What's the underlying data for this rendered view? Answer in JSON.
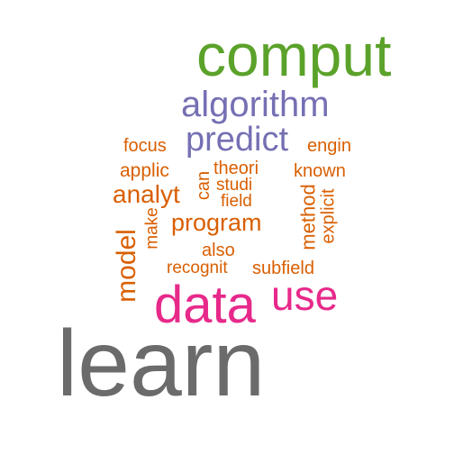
{
  "colors": {
    "gray": "#6b6b6b",
    "green": "#5ba22a",
    "purple": "#7570b3",
    "pink": "#e7298a",
    "orange": "#d95f02"
  },
  "words": {
    "learn": "learn",
    "comput": "comput",
    "data": "data",
    "use": "use",
    "algorithm": "algorithm",
    "predict": "predict",
    "program": "program",
    "analyt": "analyt",
    "model": "model",
    "focus": "focus",
    "engin": "engin",
    "applic": "applic",
    "theori": "theori",
    "known": "known",
    "can": "can",
    "studi": "studi",
    "field": "field",
    "method": "method",
    "explicit": "explicit",
    "make": "make",
    "also": "also",
    "recognit": "recognit",
    "subfield": "subfield"
  }
}
